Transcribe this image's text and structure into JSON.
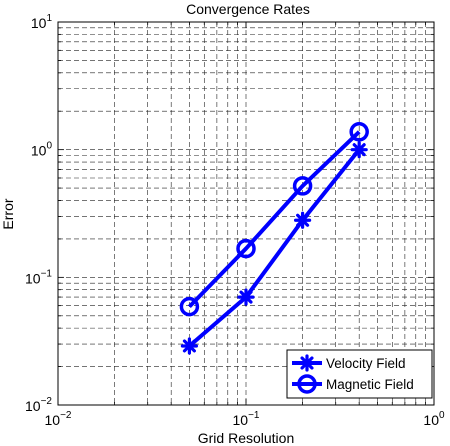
{
  "chart_data": {
    "type": "line",
    "title": "Convergence Rates",
    "xlabel": "Grid Resolution",
    "ylabel": "Error",
    "xscale": "log",
    "yscale": "log",
    "xlim": [
      0.01,
      1
    ],
    "ylim": [
      0.01,
      10
    ],
    "grid": "major-and-minor, dashed",
    "x_ticks": [
      {
        "base": "10",
        "exp": "−2"
      },
      {
        "base": "10",
        "exp": "−1"
      },
      {
        "base": "10",
        "exp": "0"
      }
    ],
    "y_ticks": [
      {
        "base": "10",
        "exp": "−2"
      },
      {
        "base": "10",
        "exp": "−1"
      },
      {
        "base": "10",
        "exp": "0"
      },
      {
        "base": "10",
        "exp": "1"
      }
    ],
    "legend_position": "bottom-right",
    "series": [
      {
        "name": "Velocity Field",
        "marker": "asterisk",
        "color": "#0000ff",
        "x": [
          0.05,
          0.1,
          0.2,
          0.4
        ],
        "y": [
          0.029,
          0.07,
          0.28,
          1.0
        ]
      },
      {
        "name": "Magnetic Field",
        "marker": "circle",
        "color": "#0000ff",
        "x": [
          0.05,
          0.1,
          0.2,
          0.4
        ],
        "y": [
          0.059,
          0.168,
          0.52,
          1.38
        ]
      }
    ]
  }
}
